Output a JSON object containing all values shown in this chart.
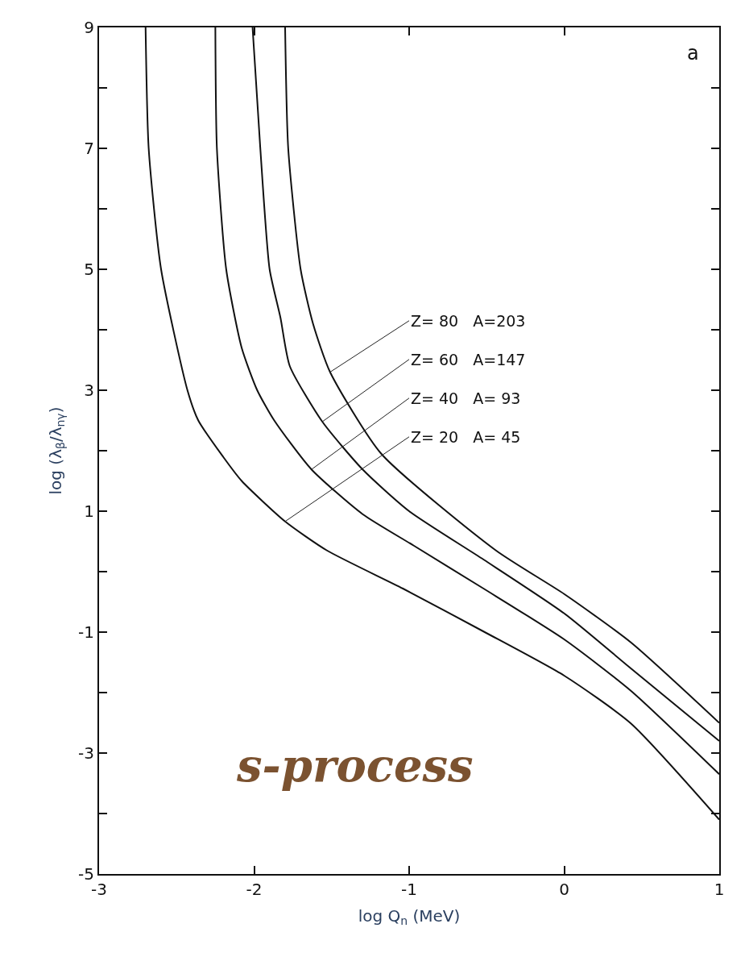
{
  "chart_data": {
    "type": "line",
    "xlabel": "log Q$_{n}$ (MeV)",
    "ylabel": "log (λ$_{β}$/λ$_{nγ}$)",
    "xlim": [
      -3,
      1
    ],
    "xticks": [
      -3,
      -2,
      -1,
      0,
      1
    ],
    "ylim": [
      -5,
      9
    ],
    "yticks": [
      -5,
      {
        "value": -4,
        "label": null
      },
      -3,
      {
        "value": -2,
        "label": null
      },
      -1,
      {
        "value": 0,
        "label": null
      },
      1,
      {
        "value": 2,
        "label": null
      },
      3,
      {
        "value": 4,
        "label": null
      },
      5,
      {
        "value": 6,
        "label": null
      },
      7,
      {
        "value": 8,
        "label": null
      },
      9
    ],
    "marker": "none",
    "line_style": "solid",
    "series": [
      {
        "color": "#111111",
        "x": [
          -2.7,
          -2.68,
          -2.6,
          -2.43,
          -2.36,
          -2.2,
          -2.08,
          -1.8,
          -1.53,
          -1.04,
          -0.52,
          0,
          0.43,
          1
        ],
        "values": [
          9,
          7,
          5,
          3,
          2.5,
          1.9,
          1.5,
          0.83,
          0.35,
          -0.28,
          -0.99,
          -1.72,
          -2.51,
          -4.1
        ]
      },
      {
        "color": "#111111",
        "x": [
          -2.25,
          -2.24,
          -2.18,
          -2.08,
          -1.98,
          -1.87,
          -1.63,
          -1.3,
          -0.97,
          -0.52,
          0,
          0.43,
          1
        ],
        "values": [
          9,
          7,
          5,
          3.7,
          3,
          2.5,
          1.69,
          0.95,
          0.43,
          -0.28,
          -1.12,
          -1.97,
          -3.35
        ]
      },
      {
        "color": "#111111",
        "x": [
          -2.01,
          -1.96,
          -1.9,
          -1.83,
          -1.77,
          -1.56,
          -1.3,
          -1.0,
          -0.52,
          0,
          0.43,
          1
        ],
        "values": [
          9,
          7,
          5,
          4.2,
          3.4,
          2.48,
          1.69,
          1.0,
          0.2,
          -0.69,
          -1.6,
          -2.8
        ]
      },
      {
        "color": "#111111",
        "x": [
          -1.8,
          -1.78,
          -1.7,
          -1.62,
          -1.51,
          -1.18,
          -0.44,
          0,
          0.43,
          1
        ],
        "values": [
          9,
          7,
          5,
          4.1,
          3.3,
          1.95,
          0.35,
          -0.37,
          -1.17,
          -2.5
        ]
      }
    ],
    "annotations": [
      {
        "text": "Z= 80   A=203",
        "x": -1.51,
        "y": 3.3
      },
      {
        "text": "Z= 60   A=147",
        "x": -1.56,
        "y": 2.48
      },
      {
        "text": "Z= 40   A= 93",
        "x": -1.63,
        "y": 1.69
      },
      {
        "text": "Z= 20   A= 45",
        "x": -1.8,
        "y": 0.83
      },
      "a",
      "s-process"
    ]
  }
}
